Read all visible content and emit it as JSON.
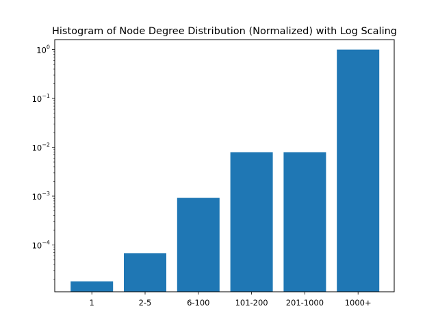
{
  "chart_data": {
    "type": "bar",
    "title": "Histogram of Node Degree Distribution (Normalized) with Log Scaling",
    "xlabel": "",
    "ylabel": "",
    "categories": [
      "1",
      "2-5",
      "6-100",
      "101-200",
      "201-1000",
      "1000+"
    ],
    "values": [
      1.8e-05,
      6.8e-05,
      0.00092,
      0.0079,
      0.0079,
      1.0
    ],
    "y_scale": "log",
    "ylim": [
      1.1e-05,
      1.6
    ],
    "y_ticks": [
      {
        "value": 0.0001,
        "base": "10",
        "exp": "−4"
      },
      {
        "value": 0.001,
        "base": "10",
        "exp": "−3"
      },
      {
        "value": 0.01,
        "base": "10",
        "exp": "−2"
      },
      {
        "value": 0.1,
        "base": "10",
        "exp": "−1"
      },
      {
        "value": 1,
        "base": "10",
        "exp": "0"
      }
    ],
    "grid": false,
    "bar_color": "#1f77b4"
  }
}
